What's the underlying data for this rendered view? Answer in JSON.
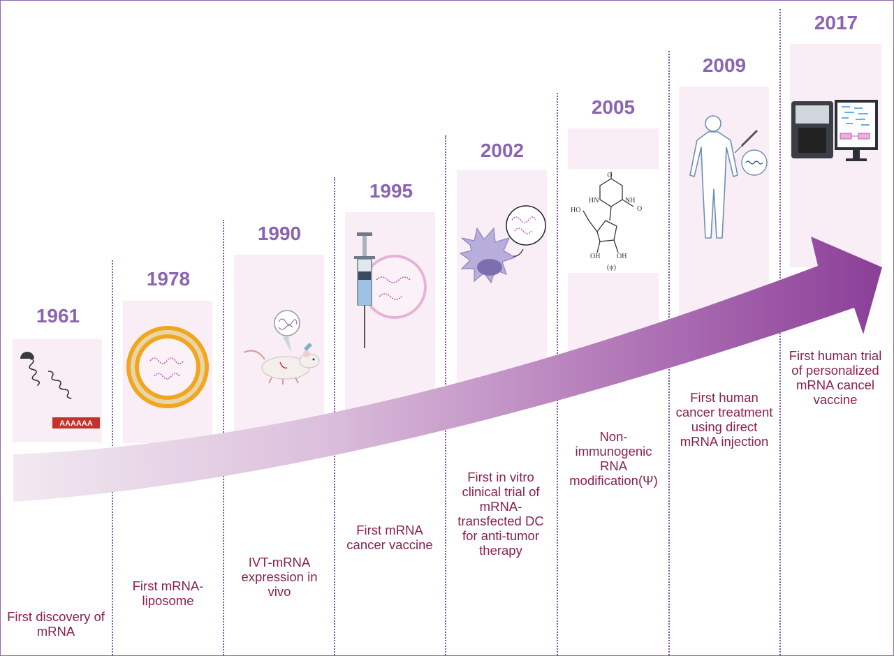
{
  "milestones": [
    {
      "year": "1961",
      "caption": "First discovery of mRNA",
      "icon": "mrna-polya-tail-icon",
      "tail_label": "AAAAAA"
    },
    {
      "year": "1978",
      "caption": "First mRNA-liposome",
      "icon": "liposome-icon"
    },
    {
      "year": "1990",
      "caption": "IVT-mRNA expression in vivo",
      "icon": "mouse-injection-icon"
    },
    {
      "year": "1995",
      "caption": "First mRNA cancer vaccine",
      "icon": "syringe-mrna-icon"
    },
    {
      "year": "2002",
      "caption": "First in vitro clinical trial of mRNA-transfected DC for anti-tumor therapy",
      "icon": "dendritic-cell-icon"
    },
    {
      "year": "2005",
      "caption": "Non-immunogenic RNA modification(Ψ)",
      "icon": "pseudouridine-structure-icon",
      "structure_labels": [
        "HO",
        "HN",
        "NH",
        "O",
        "O",
        "OH",
        "OH",
        "(ψ)"
      ]
    },
    {
      "year": "2009",
      "caption": "First human cancer treatment using direct mRNA injection",
      "icon": "human-injection-icon"
    },
    {
      "year": "2017",
      "caption": "First human trial of personalized mRNA cancel vaccine",
      "icon": "sequencer-computer-icon"
    }
  ],
  "colors": {
    "year_text": "#8a64b2",
    "caption_text": "#8a1f4d",
    "panel_fill": "#f9eef6",
    "divider": "#7a55a8",
    "arrow_start": "#efe4ef",
    "arrow_end": "#8b3f98",
    "liposome_orange": "#f2a51f"
  }
}
